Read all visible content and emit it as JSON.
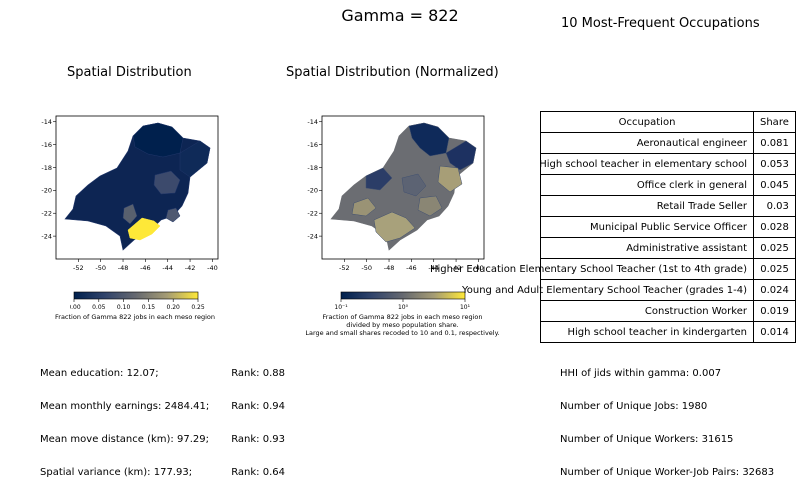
{
  "suptitle": "Gamma = 822",
  "left_panel": {
    "title": "Spatial Distribution",
    "colorbar_ticks": [
      "0.00",
      "0.05",
      "0.10",
      "0.15",
      "0.20",
      "0.25"
    ],
    "colorbar_label": "Fraction of Gamma 822 jobs in each meso region",
    "stats": {
      "education": "Mean education: 12.07;",
      "education_rank": "Rank: 0.88",
      "earnings": "Mean monthly earnings: 2484.41;",
      "earnings_rank": "Rank: 0.94",
      "move": "Mean move distance (km): 97.29;",
      "move_rank": "Rank: 0.93",
      "variance": "Spatial variance (km): 177.93;",
      "variance_rank": "Rank: 0.64"
    }
  },
  "middle_panel": {
    "title": "Spatial Distribution (Normalized)",
    "colorbar_ticks": [
      "10⁻¹",
      "10⁰",
      "10¹"
    ],
    "colorbar_label_lines": [
      "Fraction of Gamma 822 jobs in each meso region",
      "divided by meso population share.",
      "Large and small shares recoded to 10 and 0.1, respectively."
    ]
  },
  "right_panel": {
    "title": "10 Most-Frequent Occupations",
    "table_header": [
      "Occupation",
      "Share"
    ],
    "summary": [
      "HHI of jids within gamma: 0.007",
      "Number of Unique Jobs: 1980",
      "Number of Unique Workers: 31615",
      "Number of Unique Worker-Job Pairs: 32683"
    ]
  },
  "chart_data": {
    "type": "table",
    "columns": [
      "Occupation",
      "Share"
    ],
    "rows": [
      {
        "occupation": "Aeronautical engineer",
        "share": "0.081"
      },
      {
        "occupation": "High school teacher in elementary school",
        "share": "0.053"
      },
      {
        "occupation": "Office clerk in general",
        "share": "0.045"
      },
      {
        "occupation": "Retail Trade Seller",
        "share": "0.03"
      },
      {
        "occupation": "Municipal Public Service Officer",
        "share": "0.028"
      },
      {
        "occupation": "Administrative assistant",
        "share": "0.025"
      },
      {
        "occupation": "Higher Education Elementary School Teacher (1st to 4th grade)",
        "share": "0.025"
      },
      {
        "occupation": "Young and Adult Elementary School Teacher (grades 1-4)",
        "share": "0.024"
      },
      {
        "occupation": "Construction Worker",
        "share": "0.019"
      },
      {
        "occupation": "High school teacher in kindergarten",
        "share": "0.014"
      }
    ],
    "maps": {
      "x_ticks": [
        -52,
        -50,
        -48,
        -46,
        -44,
        -42,
        -40
      ],
      "y_ticks": [
        -14,
        -16,
        -18,
        -20,
        -22,
        -24
      ],
      "xlim": [
        -54,
        -39.5
      ],
      "ylim": [
        -26,
        -13.5
      ],
      "colormap": "cividis",
      "left_colorbar_range": [
        0,
        0.25
      ],
      "middle_colorbar_range": [
        0.1,
        10
      ],
      "middle_scale": "log"
    }
  }
}
